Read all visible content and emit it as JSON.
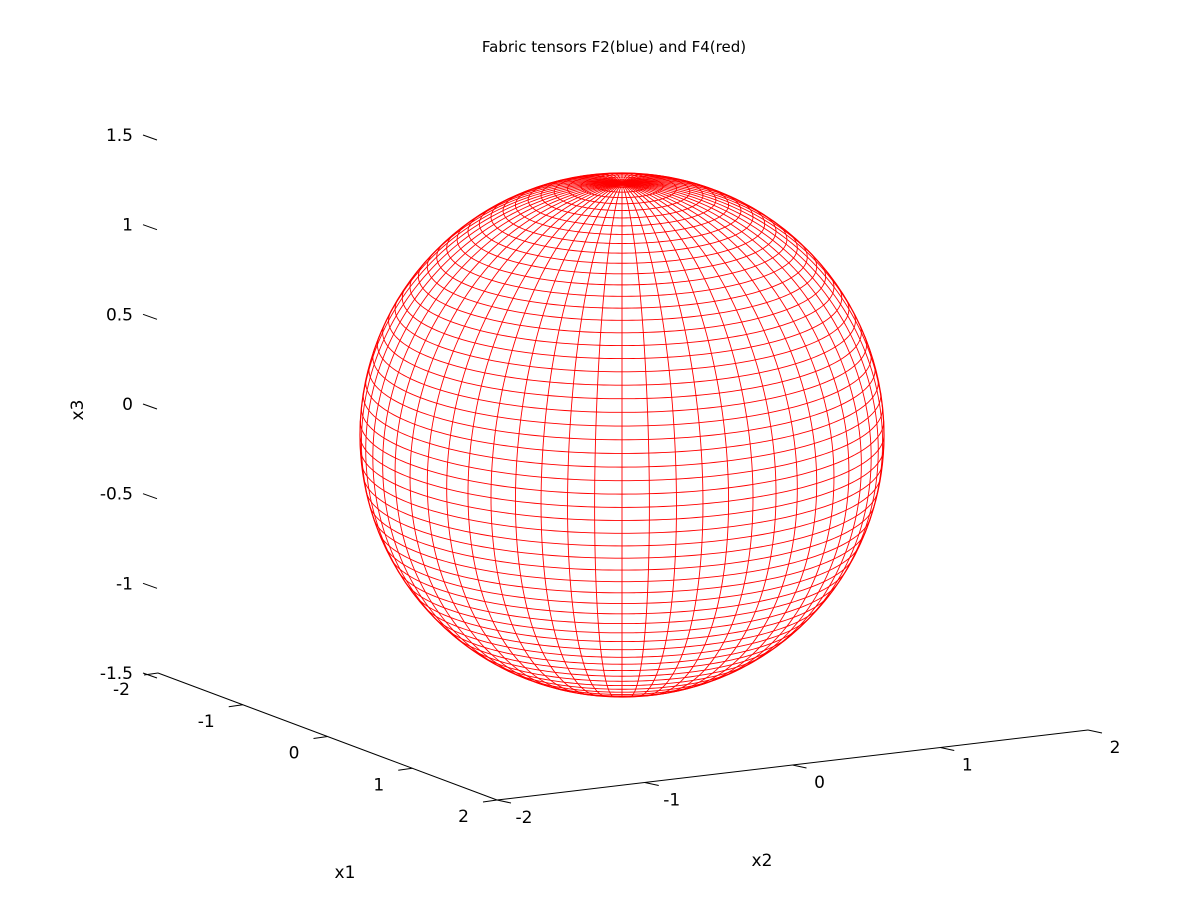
{
  "chart_data": {
    "type": "surface3d",
    "title": "Fabric tensors F2(blue) and F4(red)",
    "xlabel": "x1",
    "ylabel": "x2",
    "zlabel": "x3",
    "x_ticks": [
      "-2",
      "-1",
      "0",
      "1",
      "2"
    ],
    "y_ticks": [
      "-2",
      "-1",
      "0",
      "1",
      "2"
    ],
    "z_ticks": [
      "1.5",
      "1",
      "0.5",
      "0",
      "-0.5",
      "-1",
      "-1.5"
    ],
    "xlim": [
      -2,
      2
    ],
    "ylim": [
      -2,
      2
    ],
    "zlim": [
      -1.5,
      1.5
    ],
    "surfaces": [
      {
        "name": "F4",
        "shape": "sphere",
        "radius": 1.4,
        "center": [
          0,
          0,
          0
        ],
        "color": "#ff0000",
        "meridians": 60,
        "parallels": 60
      }
    ],
    "grid": false
  }
}
